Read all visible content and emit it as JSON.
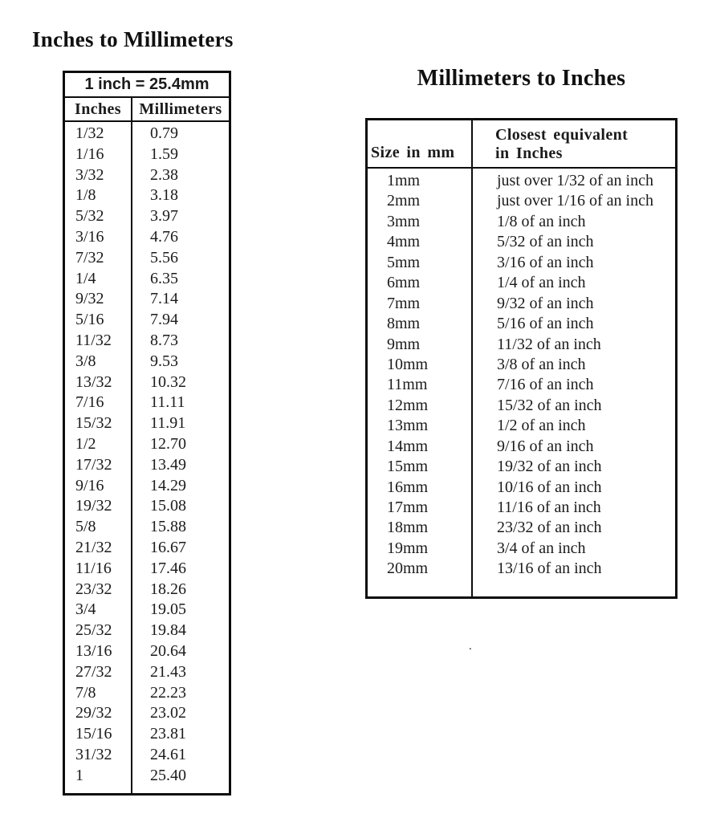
{
  "page": {
    "background": "#ffffff",
    "text_color": "#1b1b1b",
    "border_color": "#0d0d0d"
  },
  "stray_mark": ".",
  "left_table": {
    "title": "Inches to Millimeters",
    "merged_header": "1 inch = 25.4mm",
    "columns": [
      "Inches",
      "Millimeters"
    ],
    "rows": [
      [
        "1/32",
        "0.79"
      ],
      [
        "1/16",
        "1.59"
      ],
      [
        "3/32",
        "2.38"
      ],
      [
        "1/8",
        "3.18"
      ],
      [
        "5/32",
        "3.97"
      ],
      [
        "3/16",
        "4.76"
      ],
      [
        "7/32",
        "5.56"
      ],
      [
        "1/4",
        "6.35"
      ],
      [
        "9/32",
        "7.14"
      ],
      [
        "5/16",
        "7.94"
      ],
      [
        "11/32",
        "8.73"
      ],
      [
        "3/8",
        "9.53"
      ],
      [
        "13/32",
        "10.32"
      ],
      [
        "7/16",
        "11.11"
      ],
      [
        "15/32",
        "11.91"
      ],
      [
        "1/2",
        "12.70"
      ],
      [
        "17/32",
        "13.49"
      ],
      [
        "9/16",
        "14.29"
      ],
      [
        "19/32",
        "15.08"
      ],
      [
        "5/8",
        "15.88"
      ],
      [
        "21/32",
        "16.67"
      ],
      [
        "11/16",
        "17.46"
      ],
      [
        "23/32",
        "18.26"
      ],
      [
        "3/4",
        "19.05"
      ],
      [
        "25/32",
        "19.84"
      ],
      [
        "13/16",
        "20.64"
      ],
      [
        "27/32",
        "21.43"
      ],
      [
        "7/8",
        "22.23"
      ],
      [
        "29/32",
        "23.02"
      ],
      [
        "15/16",
        "23.81"
      ],
      [
        "31/32",
        "24.61"
      ],
      [
        "1",
        "25.40"
      ]
    ]
  },
  "right_table": {
    "title": "Millimeters to Inches",
    "columns": [
      "Size in mm",
      "Closest equivalent",
      "in Inches"
    ],
    "rows": [
      [
        "1mm",
        "just over 1/32 of an inch"
      ],
      [
        "2mm",
        "just over 1/16 of an inch"
      ],
      [
        "3mm",
        "1/8 of an inch"
      ],
      [
        "4mm",
        "5/32 of an inch"
      ],
      [
        "5mm",
        "3/16 of an inch"
      ],
      [
        "6mm",
        "1/4 of an inch"
      ],
      [
        "7mm",
        "9/32 of an inch"
      ],
      [
        "8mm",
        "5/16 of an inch"
      ],
      [
        "9mm",
        "11/32 of an inch"
      ],
      [
        "10mm",
        "3/8 of an inch"
      ],
      [
        "11mm",
        "7/16 of an inch"
      ],
      [
        "12mm",
        "15/32 of an inch"
      ],
      [
        "13mm",
        "1/2 of an inch"
      ],
      [
        "14mm",
        "9/16 of an inch"
      ],
      [
        "15mm",
        "19/32 of an inch"
      ],
      [
        "16mm",
        "10/16 of an inch"
      ],
      [
        "17mm",
        "11/16 of an inch"
      ],
      [
        "18mm",
        "23/32 of an inch"
      ],
      [
        "19mm",
        "3/4 of an inch"
      ],
      [
        "20mm",
        "13/16 of an inch"
      ]
    ]
  }
}
